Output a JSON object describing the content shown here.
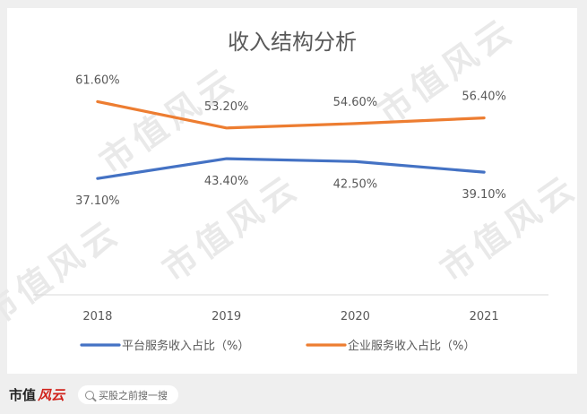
{
  "chart_data": {
    "type": "line",
    "title": "收入结构分析",
    "categories": [
      "2018",
      "2019",
      "2020",
      "2021"
    ],
    "ylim": [
      0,
      80
    ],
    "grid": false,
    "legend_position": "bottom",
    "series": [
      {
        "name": "平台服务收入占比（%）",
        "color": "#4472c4",
        "values": [
          37.1,
          43.4,
          42.5,
          39.1
        ],
        "labels": [
          "37.10%",
          "43.40%",
          "42.50%",
          "39.10%"
        ],
        "label_position": [
          "below",
          "below",
          "below",
          "below"
        ]
      },
      {
        "name": "企业服务收入占比（%）",
        "color": "#ed7d31",
        "values": [
          61.6,
          53.2,
          54.6,
          56.4
        ],
        "labels": [
          "61.60%",
          "53.20%",
          "54.60%",
          "56.40%"
        ],
        "label_position": [
          "above",
          "above",
          "above",
          "above"
        ]
      }
    ]
  },
  "watermark": "市值风云",
  "footer": {
    "brand": "市值",
    "brand_mark": "风云",
    "search_placeholder": "买股之前搜一搜"
  },
  "colors": {
    "axis": "#d9d9d9",
    "text": "#595959",
    "background": "#ffffff",
    "page": "#efefef"
  }
}
